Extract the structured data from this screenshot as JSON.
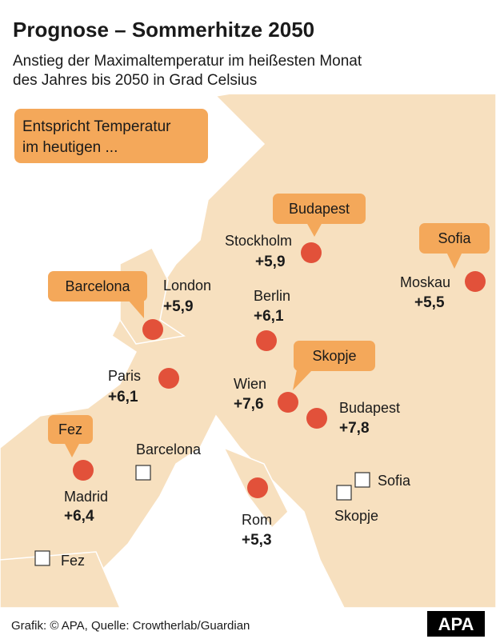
{
  "header": {
    "title": "Prognose – Sommerhitze 2050",
    "subtitle_lines": [
      "Anstieg der Maximaltemperatur im heißesten Monat",
      "des Jahres bis 2050 in Grad Celsius"
    ]
  },
  "legend_box": {
    "lines": [
      "Entspricht Temperatur",
      "im heutigen ..."
    ]
  },
  "cities": [
    {
      "name": "Stockholm",
      "change": "+5,9",
      "analog": "Budapest"
    },
    {
      "name": "Moskau",
      "change": "+5,5",
      "analog": "Sofia"
    },
    {
      "name": "London",
      "change": "+5,9",
      "analog": "Barcelona"
    },
    {
      "name": "Berlin",
      "change": "+6,1"
    },
    {
      "name": "Paris",
      "change": "+6,1"
    },
    {
      "name": "Wien",
      "change": "+7,6",
      "analog": "Skopje"
    },
    {
      "name": "Budapest",
      "change": "+7,8"
    },
    {
      "name": "Madrid",
      "change": "+6,4",
      "analog": "Fez"
    },
    {
      "name": "Rom",
      "change": "+5,3"
    }
  ],
  "reference_cities": [
    "Barcelona",
    "Sofia",
    "Skopje",
    "Fez"
  ],
  "footer": {
    "source": "Grafik: © APA, Quelle: Crowtherlab/Guardian",
    "logo": "APA"
  }
}
